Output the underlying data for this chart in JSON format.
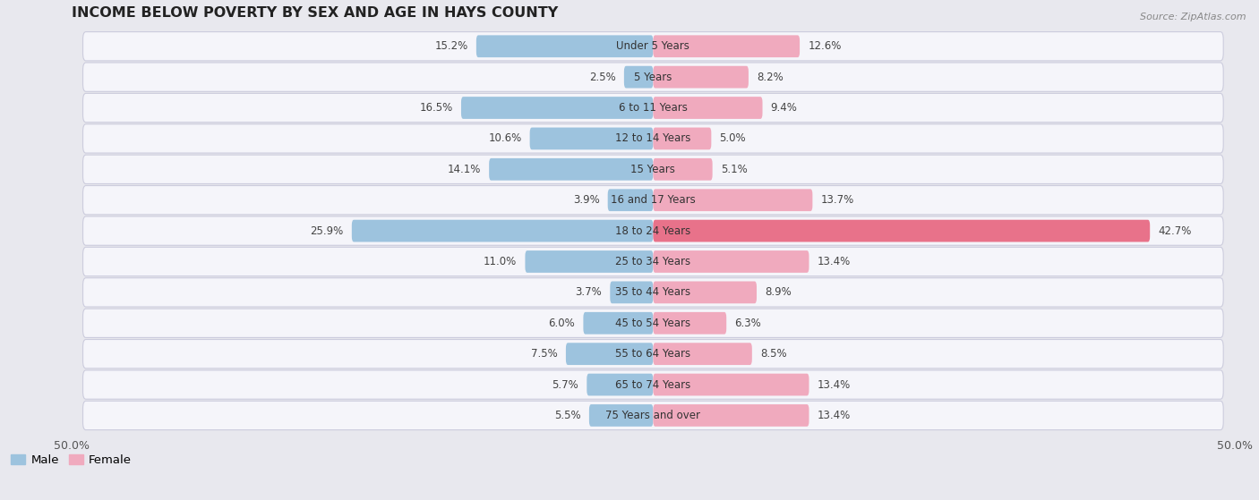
{
  "title": "INCOME BELOW POVERTY BY SEX AND AGE IN HAYS COUNTY",
  "source": "Source: ZipAtlas.com",
  "categories": [
    "Under 5 Years",
    "5 Years",
    "6 to 11 Years",
    "12 to 14 Years",
    "15 Years",
    "16 and 17 Years",
    "18 to 24 Years",
    "25 to 34 Years",
    "35 to 44 Years",
    "45 to 54 Years",
    "55 to 64 Years",
    "65 to 74 Years",
    "75 Years and over"
  ],
  "male_values": [
    15.2,
    2.5,
    16.5,
    10.6,
    14.1,
    3.9,
    25.9,
    11.0,
    3.7,
    6.0,
    7.5,
    5.7,
    5.5
  ],
  "female_values": [
    12.6,
    8.2,
    9.4,
    5.0,
    5.1,
    13.7,
    42.7,
    13.4,
    8.9,
    6.3,
    8.5,
    13.4,
    13.4
  ],
  "male_color": "#9dc3de",
  "female_color": "#f0aabe",
  "female_color_highlight": "#e8728a",
  "bar_height": 0.72,
  "xlim": 50.0,
  "bg_color": "#e8e8ee",
  "row_bg": "#f5f5fa",
  "title_fontsize": 11.5,
  "label_fontsize": 8.5,
  "tick_fontsize": 9,
  "legend_fontsize": 9.5
}
